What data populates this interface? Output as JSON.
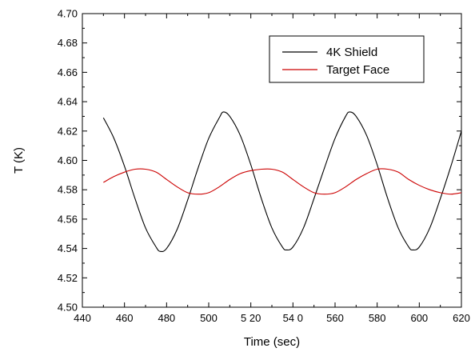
{
  "chart_data": {
    "type": "line",
    "title": "",
    "xlabel": "Time (sec)",
    "ylabel": "T (K)",
    "xlim": [
      440,
      620
    ],
    "ylim": [
      4.5,
      4.7
    ],
    "x_ticks": [
      440,
      460,
      480,
      500,
      520,
      540,
      560,
      580,
      600,
      620
    ],
    "x_tick_labels": [
      "440",
      "460",
      "480",
      "500",
      "5 20",
      "54 0",
      "560",
      "580",
      "600",
      "620"
    ],
    "y_ticks": [
      4.5,
      4.52,
      4.54,
      4.56,
      4.58,
      4.6,
      4.62,
      4.64,
      4.66,
      4.68,
      4.7
    ],
    "y_tick_labels": [
      "4.50",
      "4.52",
      "4.54",
      "4.56",
      "4.58",
      "4.60",
      "4.62",
      "4.64",
      "4.66",
      "4.68",
      "4.70"
    ],
    "grid": false,
    "legend_position": "top-right",
    "series": [
      {
        "name": "4K Shield",
        "color": "#000000",
        "x": [
          450,
          455,
          460,
          465,
          470,
          475,
          477,
          480,
          485,
          490,
          495,
          500,
          505,
          507,
          510,
          515,
          520,
          525,
          530,
          535,
          537,
          540,
          545,
          550,
          555,
          560,
          565,
          567,
          570,
          575,
          580,
          585,
          590,
          595,
          597,
          600,
          605,
          610,
          615,
          620
        ],
        "values": [
          4.629,
          4.615,
          4.596,
          4.574,
          4.554,
          4.541,
          4.538,
          4.54,
          4.553,
          4.573,
          4.595,
          4.615,
          4.629,
          4.633,
          4.63,
          4.617,
          4.597,
          4.574,
          4.554,
          4.541,
          4.539,
          4.541,
          4.554,
          4.574,
          4.595,
          4.615,
          4.63,
          4.633,
          4.63,
          4.617,
          4.597,
          4.574,
          4.554,
          4.541,
          4.539,
          4.541,
          4.554,
          4.574,
          4.596,
          4.62
        ]
      },
      {
        "name": "Target Face",
        "color": "#cc0000",
        "x": [
          450,
          455,
          460,
          465,
          470,
          475,
          480,
          485,
          490,
          495,
          500,
          505,
          510,
          515,
          520,
          525,
          530,
          535,
          540,
          545,
          550,
          555,
          560,
          565,
          570,
          575,
          580,
          585,
          590,
          595,
          600,
          605,
          610,
          615,
          620
        ],
        "values": [
          4.585,
          4.589,
          4.592,
          4.594,
          4.594,
          4.592,
          4.587,
          4.582,
          4.578,
          4.577,
          4.578,
          4.582,
          4.587,
          4.591,
          4.593,
          4.594,
          4.594,
          4.592,
          4.587,
          4.582,
          4.578,
          4.577,
          4.578,
          4.582,
          4.587,
          4.591,
          4.594,
          4.594,
          4.592,
          4.587,
          4.583,
          4.58,
          4.578,
          4.577,
          4.578
        ]
      }
    ]
  }
}
